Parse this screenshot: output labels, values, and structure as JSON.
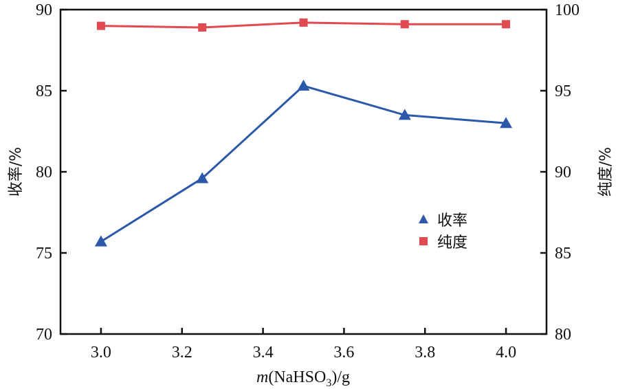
{
  "chart_data": {
    "type": "line",
    "title": "",
    "xlabel_italic": "m",
    "xlabel_rest_pre": "(NaHSO",
    "xlabel_sub": "3",
    "xlabel_rest_post": ")/g",
    "ylabel_left": "收率/%",
    "ylabel_right": "纯度/%",
    "x": [
      3.0,
      3.25,
      3.5,
      3.75,
      4.0
    ],
    "xlim": [
      2.9,
      4.1
    ],
    "xticks": [
      "3.0",
      "3.2",
      "3.4",
      "3.6",
      "3.8",
      "4.0"
    ],
    "xtick_values": [
      3.0,
      3.2,
      3.4,
      3.6,
      3.8,
      4.0
    ],
    "ylim_left": [
      70,
      90
    ],
    "yticks_left": [
      "70",
      "75",
      "80",
      "85",
      "90"
    ],
    "ylim_right": [
      80,
      100
    ],
    "yticks_right": [
      "80",
      "85",
      "90",
      "95",
      "100"
    ],
    "grid": false,
    "legend_placement": "center-right",
    "series": [
      {
        "name": "收率",
        "axis": "left",
        "marker": "triangle",
        "color": "#2b58a8",
        "values": [
          75.7,
          79.6,
          85.3,
          83.5,
          83.0
        ]
      },
      {
        "name": "纯度",
        "axis": "right",
        "marker": "square",
        "color": "#e04a50",
        "values": [
          99.0,
          98.9,
          99.2,
          99.1,
          99.1
        ]
      }
    ]
  }
}
